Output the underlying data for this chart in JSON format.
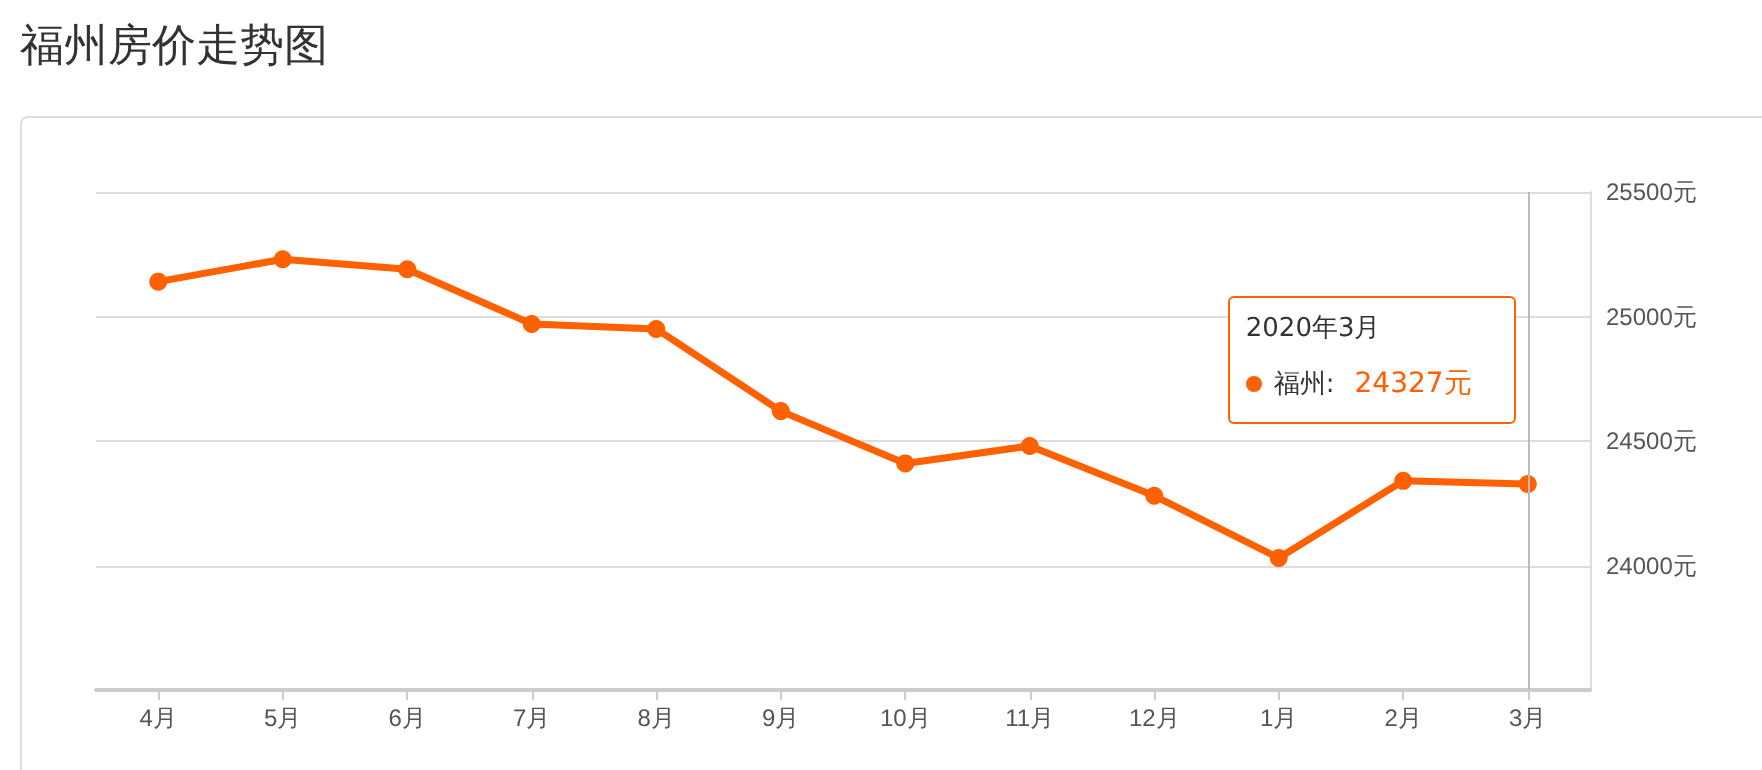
{
  "chart_data": {
    "type": "line",
    "title": "福州房价走势图",
    "categories": [
      "4月",
      "5月",
      "6月",
      "7月",
      "8月",
      "9月",
      "10月",
      "11月",
      "12月",
      "1月",
      "2月",
      "3月"
    ],
    "series": [
      {
        "name": "福州:",
        "color": "#ff6000",
        "values": [
          25140,
          25230,
          25190,
          24970,
          24950,
          24620,
          24410,
          24480,
          24280,
          24030,
          24340,
          24327
        ]
      }
    ],
    "ylim": [
      23500,
      25500
    ],
    "yticks": [
      {
        "value": 23500,
        "label": null
      },
      {
        "value": 24000,
        "label": "24000元"
      },
      {
        "value": 24500,
        "label": "24500元"
      },
      {
        "value": 25000,
        "label": "25000元"
      },
      {
        "value": 25500,
        "label": "25500元"
      }
    ],
    "grid": "y",
    "marker": "circle",
    "line_style": "solid",
    "legend": "right",
    "ref_lines": [
      {
        "axis": "x",
        "value": "3月",
        "color": "#bbbbbb"
      }
    ],
    "annotations": [
      "2020年3月",
      "24327元"
    ]
  }
}
